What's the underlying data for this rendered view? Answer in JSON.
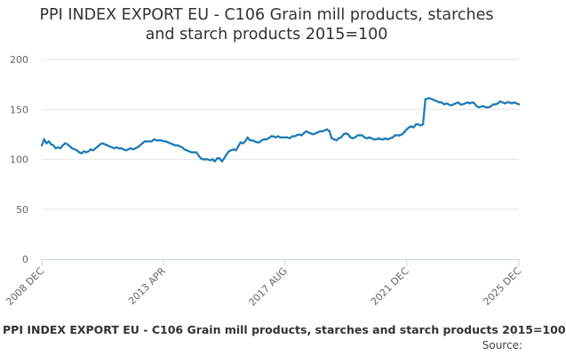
{
  "page": {
    "title_line1": "PPI INDEX EXPORT EU - C106 Grain mill products, starches",
    "title_line2": "and starch products 2015=100",
    "footer_title": "PPI INDEX EXPORT EU - C106 Grain mill products, starches and starch products 2015=100",
    "source_label": "Source:"
  },
  "colors": {
    "series": "#1a7ab8",
    "grid": "#e6e6e6",
    "axis": "#ccd6eb"
  },
  "chart_data": {
    "type": "line",
    "title": "PPI INDEX EXPORT EU - C106 Grain mill products, starches and starch products 2015=100",
    "xlabel": "",
    "ylabel": "",
    "ylim": [
      0,
      200
    ],
    "yticks": [
      0,
      50,
      100,
      150,
      200
    ],
    "xticks": [
      {
        "label": "2008 DEC",
        "t": 0
      },
      {
        "label": "2013 APR",
        "t": 52
      },
      {
        "label": "2017 AUG",
        "t": 104
      },
      {
        "label": "2021 DEC",
        "t": 156
      },
      {
        "label": "2025 DEC",
        "t": 204
      }
    ],
    "series": [
      {
        "name": "C106 Grain mill products, starches and starch products",
        "points": [
          [
            0,
            114
          ],
          [
            1,
            120
          ],
          [
            2,
            116
          ],
          [
            3,
            118
          ],
          [
            4,
            115
          ],
          [
            5,
            114
          ],
          [
            6,
            111
          ],
          [
            7,
            112
          ],
          [
            8,
            111
          ],
          [
            9,
            114
          ],
          [
            10,
            116
          ],
          [
            11,
            115
          ],
          [
            12,
            113
          ],
          [
            13,
            111
          ],
          [
            14,
            110
          ],
          [
            15,
            109
          ],
          [
            16,
            107
          ],
          [
            17,
            106
          ],
          [
            18,
            108
          ],
          [
            19,
            107
          ],
          [
            20,
            108
          ],
          [
            21,
            110
          ],
          [
            22,
            109
          ],
          [
            23,
            111
          ],
          [
            24,
            113
          ],
          [
            25,
            115
          ],
          [
            26,
            116
          ],
          [
            27,
            115
          ],
          [
            28,
            114
          ],
          [
            29,
            113
          ],
          [
            30,
            112
          ],
          [
            31,
            111
          ],
          [
            32,
            112
          ],
          [
            33,
            111
          ],
          [
            34,
            111
          ],
          [
            35,
            110
          ],
          [
            36,
            109
          ],
          [
            37,
            110
          ],
          [
            38,
            111
          ],
          [
            39,
            110
          ],
          [
            40,
            111
          ],
          [
            41,
            112
          ],
          [
            42,
            114
          ],
          [
            43,
            116
          ],
          [
            44,
            118
          ],
          [
            45,
            118
          ],
          [
            46,
            118
          ],
          [
            47,
            118
          ],
          [
            48,
            120
          ],
          [
            49,
            119
          ],
          [
            50,
            119
          ],
          [
            51,
            119
          ],
          [
            52,
            118
          ],
          [
            53,
            118
          ],
          [
            54,
            117
          ],
          [
            55,
            116
          ],
          [
            56,
            115
          ],
          [
            57,
            114
          ],
          [
            58,
            114
          ],
          [
            59,
            113
          ],
          [
            60,
            112
          ],
          [
            61,
            110
          ],
          [
            62,
            109
          ],
          [
            63,
            108
          ],
          [
            64,
            107
          ],
          [
            65,
            107
          ],
          [
            66,
            107
          ],
          [
            67,
            104
          ],
          [
            68,
            101
          ],
          [
            69,
            100
          ],
          [
            70,
            100
          ],
          [
            71,
            100
          ],
          [
            72,
            99
          ],
          [
            73,
            100
          ],
          [
            74,
            98
          ],
          [
            75,
            101
          ],
          [
            76,
            101
          ],
          [
            77,
            98
          ],
          [
            78,
            101
          ],
          [
            79,
            105
          ],
          [
            80,
            108
          ],
          [
            81,
            109
          ],
          [
            82,
            110
          ],
          [
            83,
            109
          ],
          [
            84,
            113
          ],
          [
            85,
            117
          ],
          [
            86,
            116
          ],
          [
            87,
            118
          ],
          [
            88,
            122
          ],
          [
            89,
            119
          ],
          [
            90,
            119
          ],
          [
            91,
            118
          ],
          [
            92,
            117
          ],
          [
            93,
            117
          ],
          [
            94,
            119
          ],
          [
            95,
            120
          ],
          [
            96,
            120
          ],
          [
            97,
            121
          ],
          [
            98,
            123
          ],
          [
            99,
            123
          ],
          [
            100,
            122
          ],
          [
            101,
            123
          ],
          [
            102,
            122
          ],
          [
            103,
            122
          ],
          [
            104,
            122
          ],
          [
            105,
            122
          ],
          [
            106,
            121
          ],
          [
            107,
            123
          ],
          [
            108,
            123
          ],
          [
            109,
            124
          ],
          [
            110,
            125
          ],
          [
            111,
            124
          ],
          [
            112,
            126
          ],
          [
            113,
            128
          ],
          [
            114,
            127
          ],
          [
            115,
            126
          ],
          [
            116,
            125
          ],
          [
            117,
            126
          ],
          [
            118,
            127
          ],
          [
            119,
            128
          ],
          [
            120,
            128
          ],
          [
            121,
            129
          ],
          [
            122,
            130
          ],
          [
            123,
            128
          ],
          [
            124,
            121
          ],
          [
            125,
            120
          ],
          [
            126,
            119
          ],
          [
            127,
            121
          ],
          [
            128,
            122
          ],
          [
            129,
            125
          ],
          [
            130,
            126
          ],
          [
            131,
            125
          ],
          [
            132,
            122
          ],
          [
            133,
            121
          ],
          [
            134,
            122
          ],
          [
            135,
            124
          ],
          [
            136,
            124
          ],
          [
            137,
            124
          ],
          [
            138,
            122
          ],
          [
            139,
            121
          ],
          [
            140,
            122
          ],
          [
            141,
            121
          ],
          [
            142,
            120
          ],
          [
            143,
            120
          ],
          [
            144,
            121
          ],
          [
            145,
            120
          ],
          [
            146,
            120
          ],
          [
            147,
            121
          ],
          [
            148,
            120
          ],
          [
            149,
            121
          ],
          [
            150,
            122
          ],
          [
            151,
            124
          ],
          [
            152,
            124
          ],
          [
            153,
            124
          ],
          [
            154,
            125
          ],
          [
            155,
            127
          ],
          [
            156,
            130
          ],
          [
            157,
            132
          ],
          [
            158,
            133
          ],
          [
            159,
            132
          ],
          [
            160,
            135
          ],
          [
            161,
            135
          ],
          [
            162,
            134
          ],
          [
            163,
            135
          ],
          [
            164,
            160
          ],
          [
            165,
            161
          ],
          [
            166,
            161
          ],
          [
            167,
            160
          ],
          [
            168,
            159
          ],
          [
            169,
            158
          ],
          [
            170,
            157
          ],
          [
            171,
            157
          ],
          [
            172,
            155
          ],
          [
            173,
            156
          ],
          [
            174,
            155
          ],
          [
            175,
            154
          ],
          [
            176,
            155
          ],
          [
            177,
            156
          ],
          [
            178,
            157
          ],
          [
            179,
            155
          ],
          [
            180,
            155
          ],
          [
            181,
            156
          ],
          [
            182,
            157
          ],
          [
            183,
            156
          ],
          [
            184,
            157
          ],
          [
            185,
            156
          ],
          [
            186,
            153
          ],
          [
            187,
            152
          ],
          [
            188,
            153
          ],
          [
            189,
            153
          ],
          [
            190,
            152
          ],
          [
            191,
            152
          ],
          [
            192,
            153
          ],
          [
            193,
            155
          ],
          [
            194,
            155
          ],
          [
            195,
            156
          ],
          [
            196,
            158
          ],
          [
            197,
            157
          ],
          [
            198,
            156
          ],
          [
            199,
            157
          ],
          [
            200,
            157
          ],
          [
            201,
            156
          ],
          [
            202,
            157
          ],
          [
            203,
            156
          ],
          [
            204,
            155
          ]
        ]
      }
    ]
  }
}
